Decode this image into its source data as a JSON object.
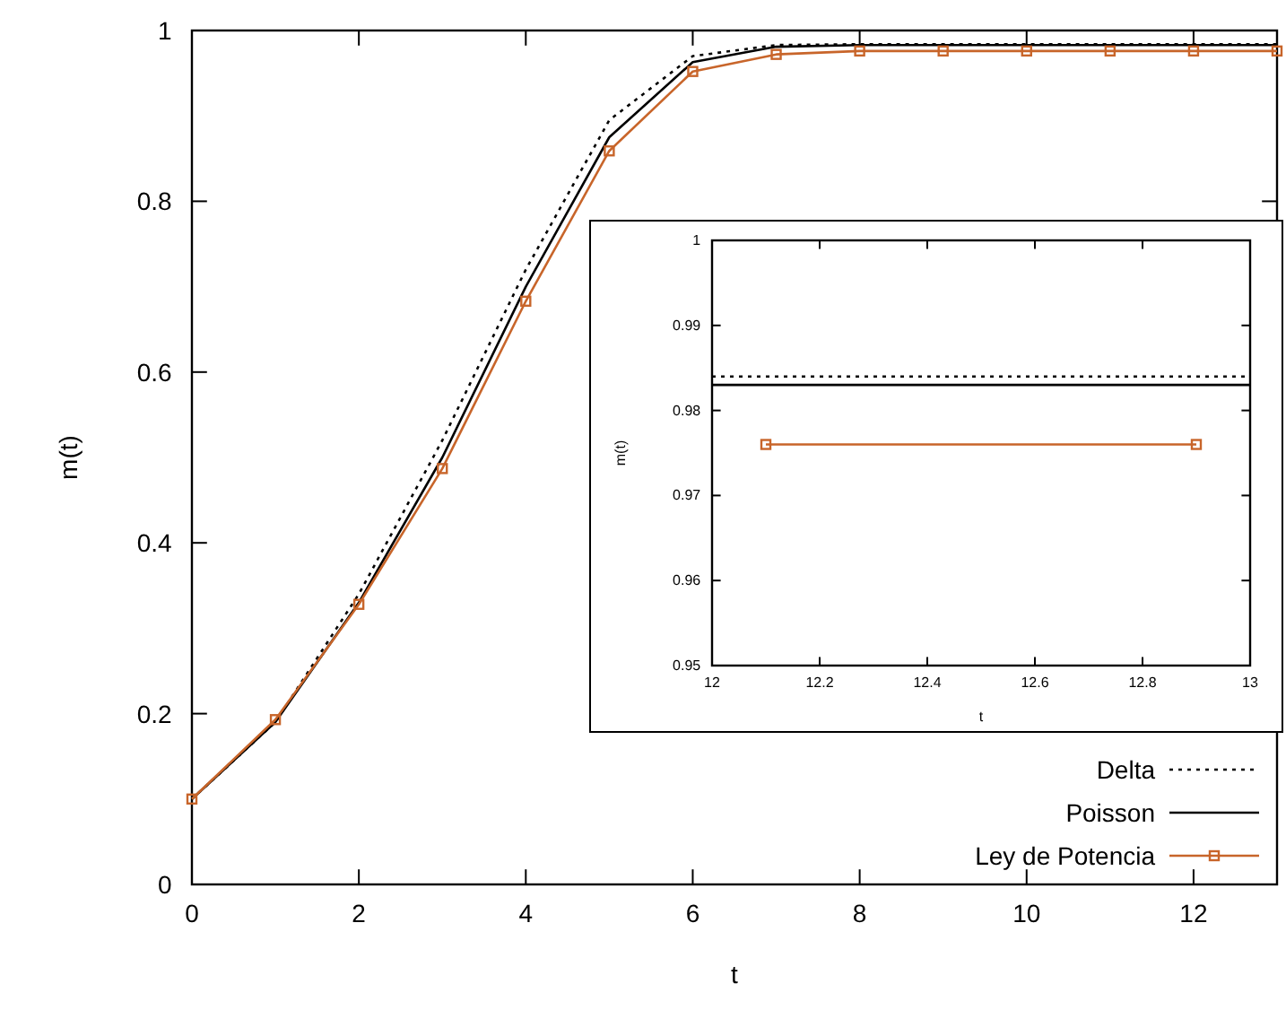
{
  "chart_data": [
    {
      "type": "line",
      "xlabel": "t",
      "ylabel": "m(t)",
      "xlim": [
        0,
        13
      ],
      "ylim": [
        0,
        1
      ],
      "xticks": [
        0,
        2,
        4,
        6,
        8,
        10,
        12
      ],
      "yticks": [
        0,
        {
          "value": 0.2,
          "label": "0.2"
        },
        {
          "value": 0.4,
          "label": "0.4"
        },
        {
          "value": 0.6,
          "label": "0.6"
        },
        {
          "value": 0.8,
          "label": "0.8"
        },
        1
      ],
      "grid": false,
      "legend": "bottom right",
      "x": [
        0,
        1,
        2,
        3,
        4,
        5,
        6,
        7,
        8,
        9,
        10,
        11,
        12,
        13
      ],
      "series": [
        {
          "name": "Delta",
          "color": "#000000",
          "line_style": "dotted",
          "marker": "none",
          "values": [
            0.1,
            0.19,
            0.34,
            0.52,
            0.72,
            0.895,
            0.97,
            0.983,
            0.984,
            0.984,
            0.984,
            0.984,
            0.984,
            0.984
          ]
        },
        {
          "name": "Poisson",
          "color": "#000000",
          "line_style": "solid",
          "marker": "none",
          "values": [
            0.1,
            0.19,
            0.33,
            0.5,
            0.7,
            0.875,
            0.963,
            0.981,
            0.983,
            0.983,
            0.983,
            0.983,
            0.983,
            0.983
          ]
        },
        {
          "name": "Ley de Potencia",
          "color": "#c8652a",
          "line_style": "solid",
          "marker": "square",
          "values": [
            0.1,
            0.193,
            0.328,
            0.487,
            0.683,
            0.859,
            0.952,
            0.972,
            0.976,
            0.976,
            0.976,
            0.976,
            0.976,
            0.976
          ]
        }
      ]
    },
    {
      "type": "line",
      "xlabel": "t",
      "ylabel": "m(t)",
      "xlim": [
        12,
        13
      ],
      "ylim": [
        0.95,
        1
      ],
      "xticks": [
        12,
        12.2,
        12.4,
        12.6,
        12.8,
        13
      ],
      "yticks": [
        0.95,
        0.96,
        0.97,
        0.98,
        0.99,
        1
      ],
      "grid": false,
      "legend": false,
      "series": [
        {
          "color": "#000000",
          "line_style": "dotted",
          "marker": "none",
          "x": [
            12,
            13
          ],
          "values": [
            0.984,
            0.984
          ]
        },
        {
          "color": "#000000",
          "line_style": "solid",
          "marker": "none",
          "x": [
            12,
            13
          ],
          "values": [
            0.983,
            0.983
          ]
        },
        {
          "color": "#c8652a",
          "line_style": "solid",
          "marker": "square",
          "x": [
            12.1,
            12.9
          ],
          "values": [
            0.976,
            0.976
          ]
        }
      ]
    }
  ]
}
